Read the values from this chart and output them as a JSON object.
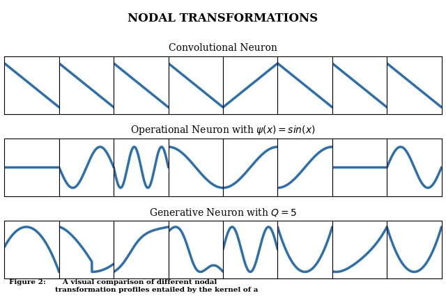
{
  "title": "NODAL TRANSFORMATIONS",
  "row_labels": [
    "Convolutional Neuron",
    "Operational Neuron with $\\psi(x) = \\mathit{sin}(x)$",
    "Generative Neuron with $Q = 5$"
  ],
  "caption_bold": "Figure 2:",
  "caption_rest": "   A visual comparison of different nodal\ntransformation profiles entailed by the kernel of a",
  "line_color": "#2c6fad",
  "line_width": 2.5,
  "n_cols": 8,
  "background_color": "#ffffff"
}
